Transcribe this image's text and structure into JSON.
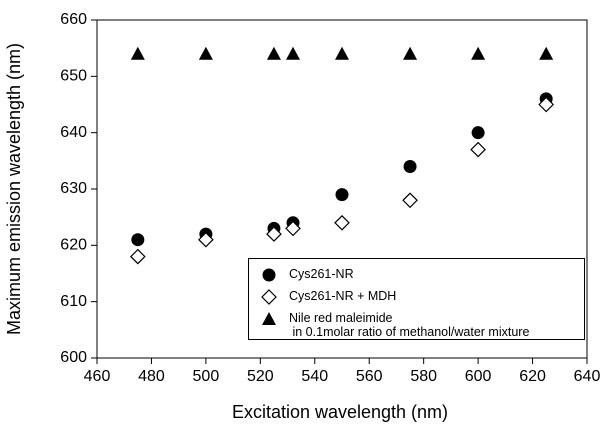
{
  "chart_data": {
    "type": "scatter",
    "xlabel": "Excitation wavelength (nm)",
    "ylabel": "Maximum emission wavelength (nm)",
    "x": [
      475,
      500,
      525,
      532,
      550,
      575,
      600,
      625
    ],
    "series": [
      {
        "name": "Cys261-NR",
        "color": "#000000",
        "marker": "circle",
        "values": [
          621,
          622,
          623,
          624,
          629,
          634,
          640,
          646
        ]
      },
      {
        "name": "Cys261-NR + MDH",
        "color": "#000000",
        "marker": "diamond-open",
        "values": [
          618,
          621,
          622,
          623,
          624,
          628,
          637,
          645
        ]
      },
      {
        "name": "Nile red maleimide\n in 0.1molar ratio of methanol/water mixture",
        "color": "#000000",
        "marker": "triangle",
        "values": [
          654,
          654,
          654,
          654,
          654,
          654,
          654,
          654
        ]
      }
    ],
    "xlim": [
      460,
      640
    ],
    "xticks": [
      460,
      480,
      500,
      520,
      540,
      560,
      580,
      600,
      620,
      640
    ],
    "ylim": [
      600,
      660
    ],
    "yticks": [
      600,
      610,
      620,
      630,
      640,
      650,
      660
    ],
    "grid": false,
    "legend": "lower right"
  }
}
